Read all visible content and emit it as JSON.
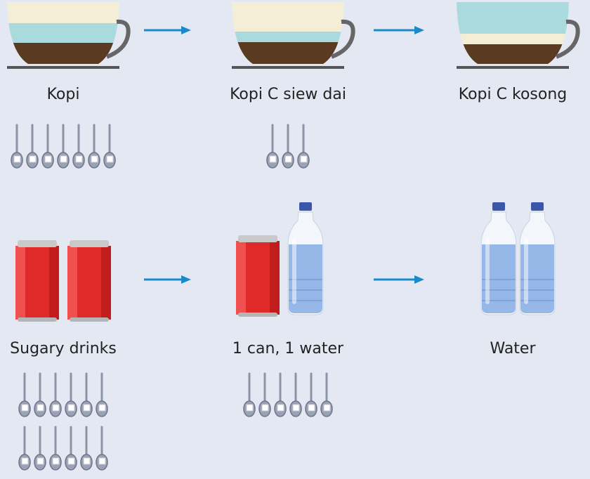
{
  "rows": [
    {
      "items": [
        {
          "label": "Kopi",
          "sugar_teaspoons": 7
        },
        {
          "label": "Kopi C siew dai",
          "sugar_teaspoons": 3
        },
        {
          "label": "Kopi C kosong",
          "sugar_teaspoons": 0
        }
      ]
    },
    {
      "items": [
        {
          "label": "Sugary drinks",
          "sugar_teaspoons": 12
        },
        {
          "label": "1 can, 1 water",
          "sugar_teaspoons": 6
        },
        {
          "label": "Water",
          "sugar_teaspoons": 0
        }
      ]
    }
  ]
}
